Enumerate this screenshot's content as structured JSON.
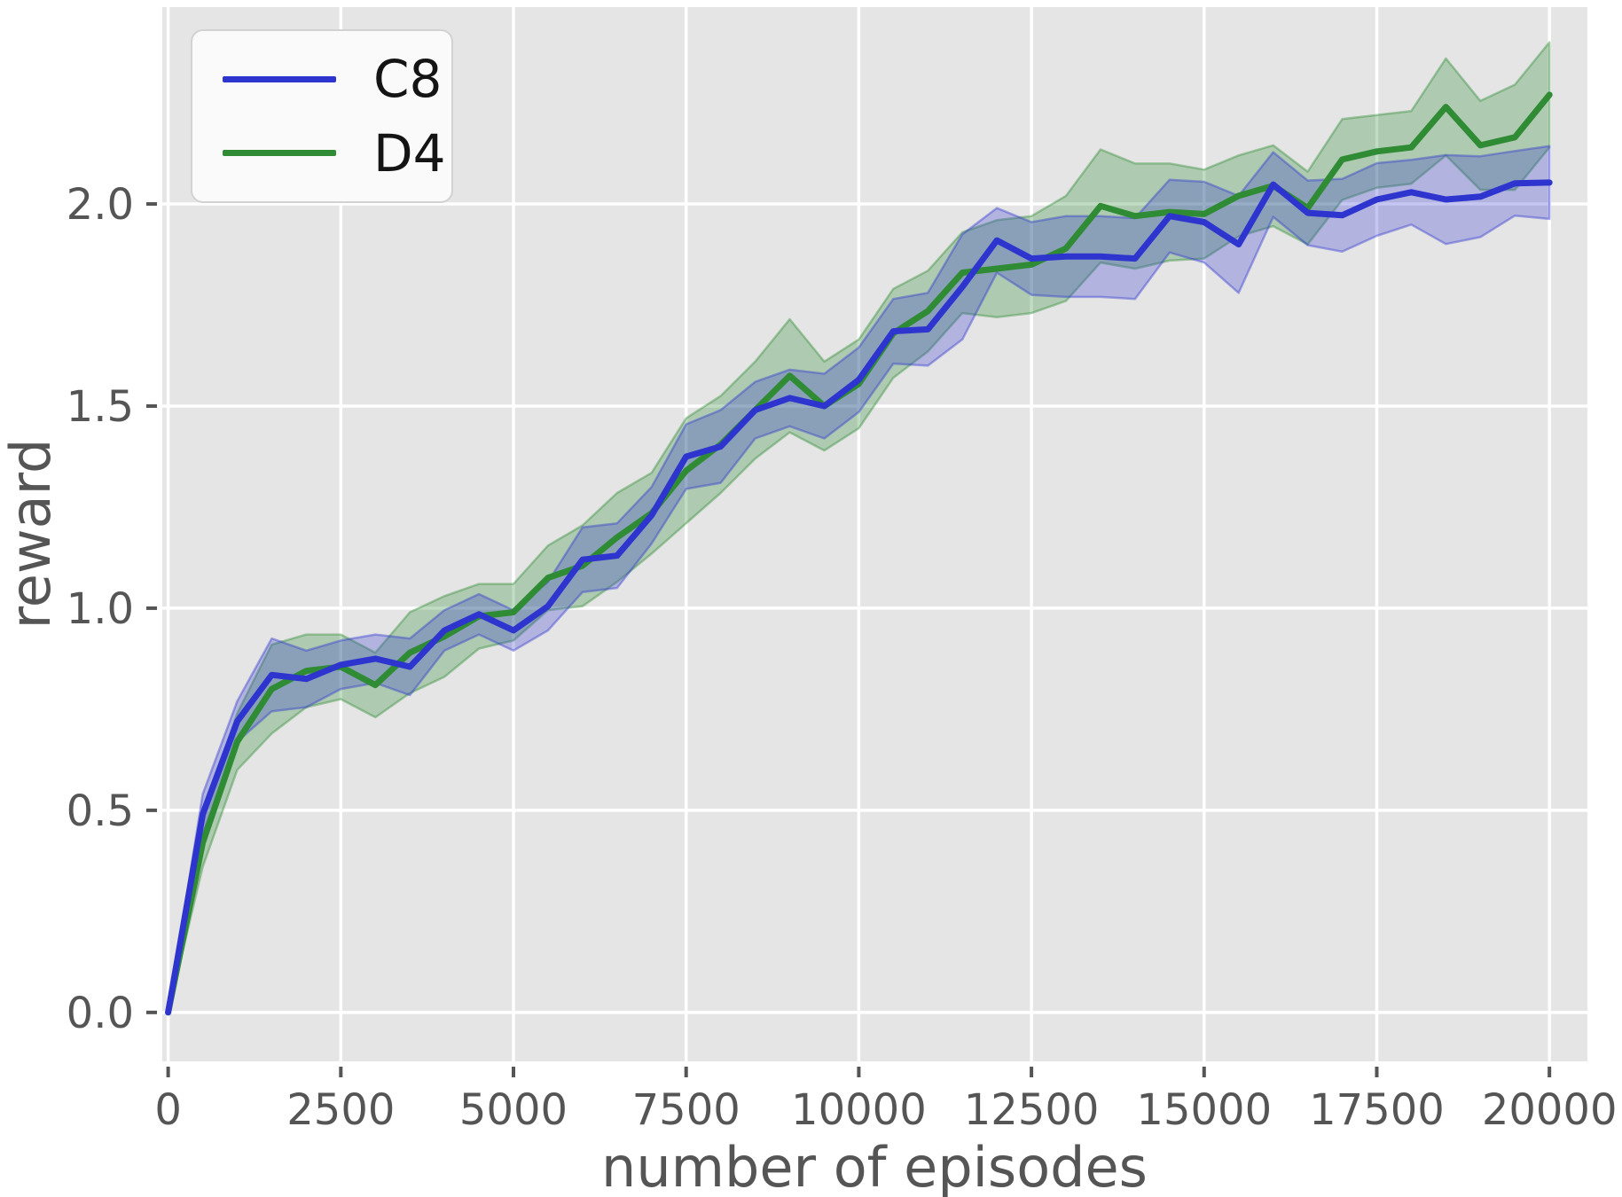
{
  "chart_data": {
    "type": "line",
    "title": "",
    "xlabel": "number of episodes",
    "ylabel": "reward",
    "x": [
      0,
      500,
      1000,
      1500,
      2000,
      2500,
      3000,
      3500,
      4000,
      4500,
      5000,
      5500,
      6000,
      6500,
      7000,
      7500,
      8000,
      8500,
      9000,
      9500,
      10000,
      10500,
      11000,
      11500,
      12000,
      12500,
      13000,
      13500,
      14000,
      14500,
      15000,
      15500,
      16000,
      16500,
      17000,
      17500,
      18000,
      18500,
      19000,
      19500,
      20000
    ],
    "series": [
      {
        "name": "C8",
        "color": "#2e35cf",
        "band_fill": "rgba(46,53,207,0.28)",
        "values": [
          0.0,
          0.49,
          0.72,
          0.835,
          0.825,
          0.86,
          0.875,
          0.855,
          0.945,
          0.985,
          0.945,
          1.005,
          1.12,
          1.13,
          1.23,
          1.375,
          1.4,
          1.49,
          1.52,
          1.5,
          1.565,
          1.685,
          1.69,
          1.795,
          1.91,
          1.865,
          1.87,
          1.87,
          1.865,
          1.97,
          1.955,
          1.9,
          2.048,
          1.978,
          1.972,
          2.011,
          2.029,
          2.011,
          2.018,
          2.051,
          2.053
        ],
        "band_halfwidth": [
          0.0,
          0.05,
          0.05,
          0.09,
          0.07,
          0.06,
          0.06,
          0.07,
          0.05,
          0.05,
          0.05,
          0.06,
          0.08,
          0.08,
          0.07,
          0.08,
          0.09,
          0.07,
          0.07,
          0.08,
          0.08,
          0.08,
          0.09,
          0.13,
          0.08,
          0.09,
          0.1,
          0.1,
          0.1,
          0.09,
          0.1,
          0.12,
          0.08,
          0.08,
          0.09,
          0.09,
          0.08,
          0.11,
          0.1,
          0.08,
          0.09
        ]
      },
      {
        "name": "D4",
        "color": "#2f8b34",
        "band_fill": "rgba(47,139,52,0.30)",
        "values": [
          0.0,
          0.42,
          0.67,
          0.8,
          0.845,
          0.855,
          0.81,
          0.89,
          0.93,
          0.98,
          0.99,
          1.075,
          1.105,
          1.175,
          1.235,
          1.34,
          1.405,
          1.49,
          1.575,
          1.5,
          1.555,
          1.68,
          1.735,
          1.83,
          1.84,
          1.85,
          1.89,
          1.995,
          1.97,
          1.98,
          1.975,
          2.02,
          2.045,
          1.99,
          2.11,
          2.13,
          2.14,
          2.24,
          2.145,
          2.165,
          2.27
        ],
        "band_halfwidth": [
          0.0,
          0.06,
          0.07,
          0.11,
          0.09,
          0.08,
          0.08,
          0.1,
          0.1,
          0.08,
          0.07,
          0.08,
          0.1,
          0.11,
          0.1,
          0.13,
          0.12,
          0.12,
          0.14,
          0.11,
          0.11,
          0.11,
          0.1,
          0.1,
          0.12,
          0.12,
          0.13,
          0.14,
          0.13,
          0.12,
          0.11,
          0.1,
          0.1,
          0.09,
          0.1,
          0.09,
          0.09,
          0.12,
          0.11,
          0.13,
          0.13
        ]
      }
    ],
    "axes": {
      "xlim": [
        -85,
        20550
      ],
      "ylim": [
        -0.121,
        2.487
      ],
      "xticks": {
        "values": [
          0,
          2500,
          5000,
          7500,
          10000,
          12500,
          15000,
          17500,
          20000
        ],
        "labels": [
          "0",
          "2500",
          "5000",
          "7500",
          "10000",
          "12500",
          "15000",
          "17500",
          "20000"
        ]
      },
      "yticks": {
        "values": [
          0.0,
          0.5,
          1.0,
          1.5,
          2.0
        ],
        "labels": [
          "0.0",
          "0.5",
          "1.0",
          "1.5",
          "2.0"
        ]
      },
      "grid": true,
      "background": "#e5e5e5",
      "grid_color": "#ffffff",
      "tick_color": "#555555",
      "label_color": "#555555"
    },
    "legend": {
      "position": "upper left",
      "entries": [
        "C8",
        "D4"
      ]
    }
  }
}
